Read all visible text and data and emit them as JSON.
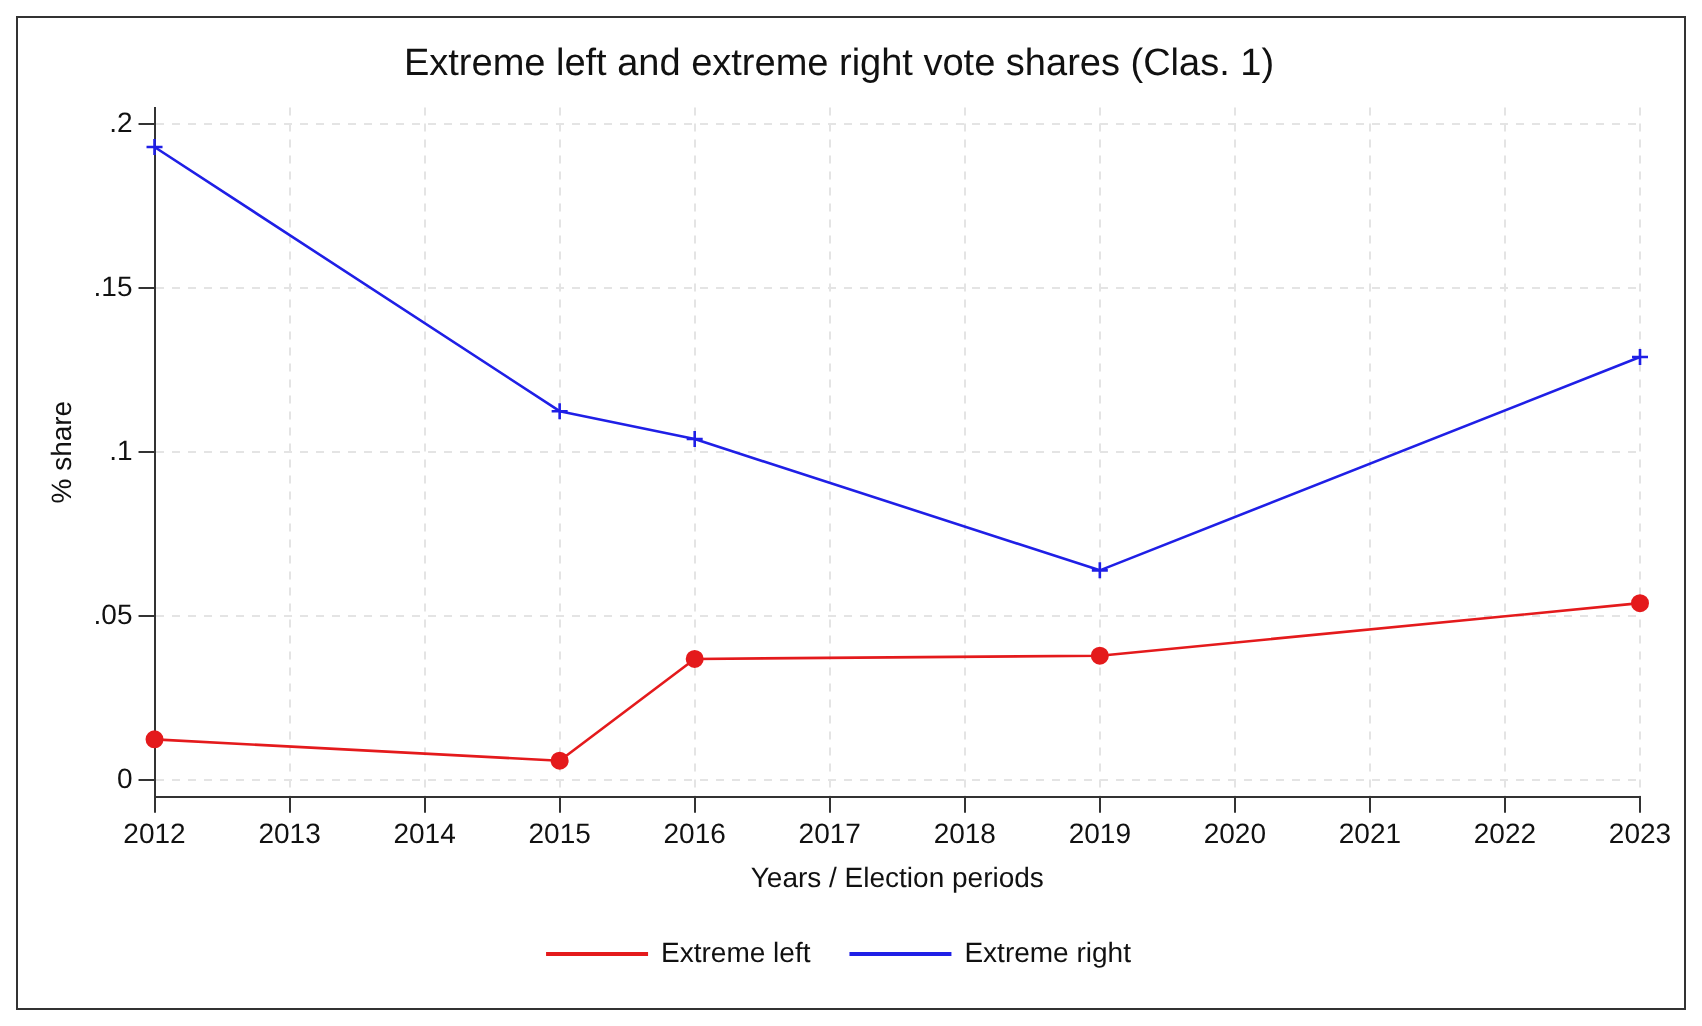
{
  "chart_data": {
    "type": "line",
    "title": "Extreme left and extreme right vote shares (Clas. 1)",
    "xlabel": "Years / Election periods",
    "ylabel": "% share",
    "series": [
      {
        "name": "Extreme left",
        "color": "#e41a1c",
        "marker": "circle",
        "x": [
          2012,
          2015,
          2016,
          2019,
          2023
        ],
        "values": [
          0.0125,
          0.006,
          0.037,
          0.038,
          0.054
        ]
      },
      {
        "name": "Extreme right",
        "color": "#1f1fe6",
        "marker": "cross",
        "x": [
          2012,
          2015,
          2016,
          2019,
          2023
        ],
        "values": [
          0.193,
          0.1125,
          0.104,
          0.064,
          0.129
        ]
      }
    ],
    "xlim": [
      2012,
      2023
    ],
    "xticks": [
      2012,
      2013,
      2014,
      2015,
      2016,
      2017,
      2018,
      2019,
      2020,
      2021,
      2022,
      2023
    ],
    "ylim": [
      -0.005,
      0.205
    ],
    "yticks": [
      {
        "value": 0,
        "label": "0"
      },
      {
        "value": 0.05,
        "label": ".05"
      },
      {
        "value": 0.1,
        "label": ".1"
      },
      {
        "value": 0.15,
        "label": ".15"
      },
      {
        "value": 0.2,
        "label": ".2"
      }
    ],
    "grid": true,
    "legend": "bottom",
    "line_style": "solid"
  }
}
